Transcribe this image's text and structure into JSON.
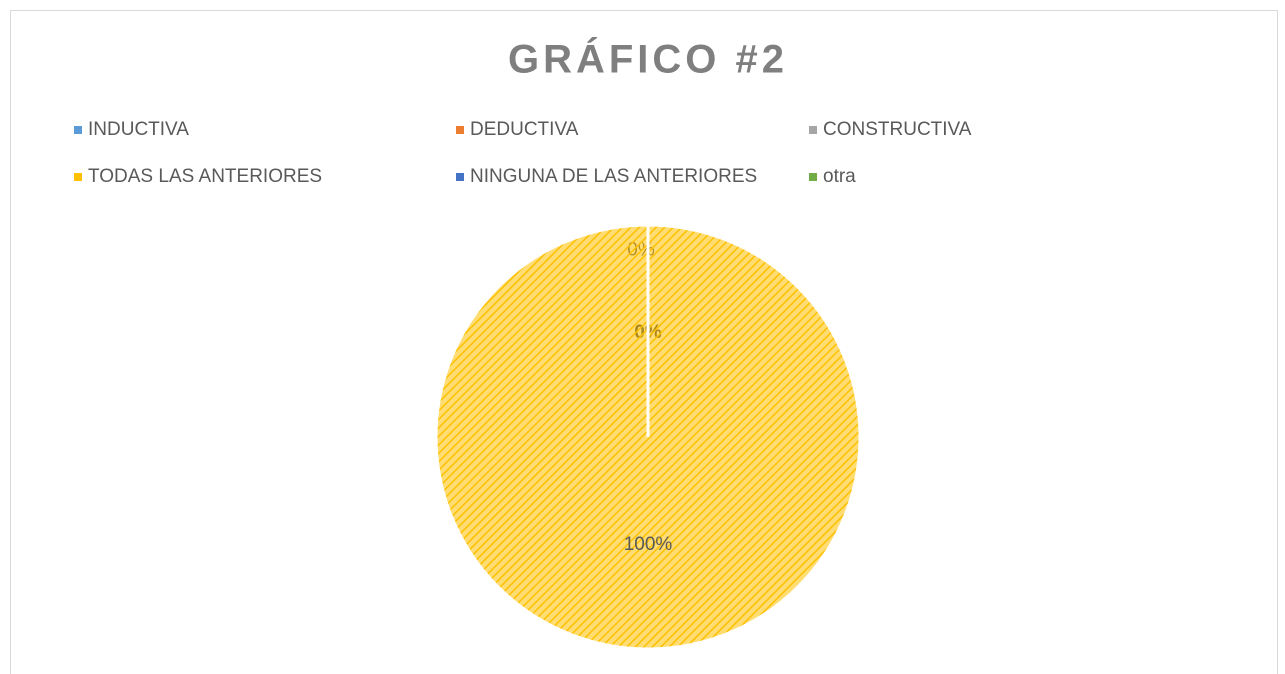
{
  "chart_data": {
    "type": "pie",
    "title": "GRÁFICO #2",
    "categories": [
      "INDUCTIVA",
      "DEDUCTIVA",
      "CONSTRUCTIVA",
      "TODAS LAS ANTERIORES",
      "NINGUNA DE LAS ANTERIORES",
      "otra"
    ],
    "values": [
      0,
      0,
      0,
      100,
      0,
      0
    ],
    "value_labels": [
      "0%",
      "0%",
      null,
      "100%",
      null,
      null
    ],
    "colors": [
      "#5b9bd5",
      "#ed7d31",
      "#a5a5a5",
      "#ffc000",
      "#4472c4",
      "#70ad47"
    ],
    "legend": "top"
  }
}
